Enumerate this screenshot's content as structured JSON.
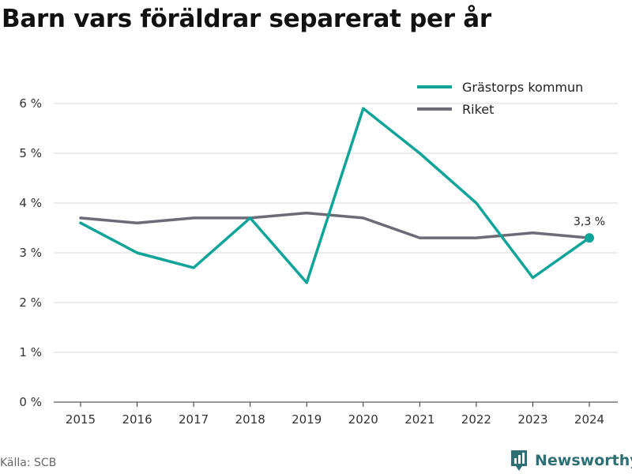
{
  "title": "Barn vars föräldrar separerat per år",
  "source": "Källa: SCB",
  "brand": "Newsworthy",
  "colors": {
    "kommun": "#10a398",
    "riket": "#6c6b76"
  },
  "chart_data": {
    "type": "line",
    "title": "Barn vars föräldrar separerat per år",
    "xlabel": "",
    "ylabel": "",
    "x": [
      "2015",
      "2016",
      "2017",
      "2018",
      "2019",
      "2020",
      "2021",
      "2022",
      "2023",
      "2024"
    ],
    "ylim": [
      0,
      6
    ],
    "yticks": [
      "0 %",
      "1 %",
      "2 %",
      "3 %",
      "4 %",
      "5 %",
      "6 %"
    ],
    "grid": true,
    "legend": "top-right",
    "series": [
      {
        "name": "Grästorps kommun",
        "values": [
          3.6,
          3.0,
          2.7,
          3.7,
          2.4,
          5.9,
          5.0,
          4.0,
          2.5,
          3.3
        ]
      },
      {
        "name": "Riket",
        "values": [
          3.7,
          3.6,
          3.7,
          3.7,
          3.8,
          3.7,
          3.3,
          3.3,
          3.4,
          3.3
        ]
      }
    ],
    "annotations": [
      {
        "text": "3,3 %",
        "series": "Grästorps kommun",
        "x": "2024"
      }
    ]
  }
}
